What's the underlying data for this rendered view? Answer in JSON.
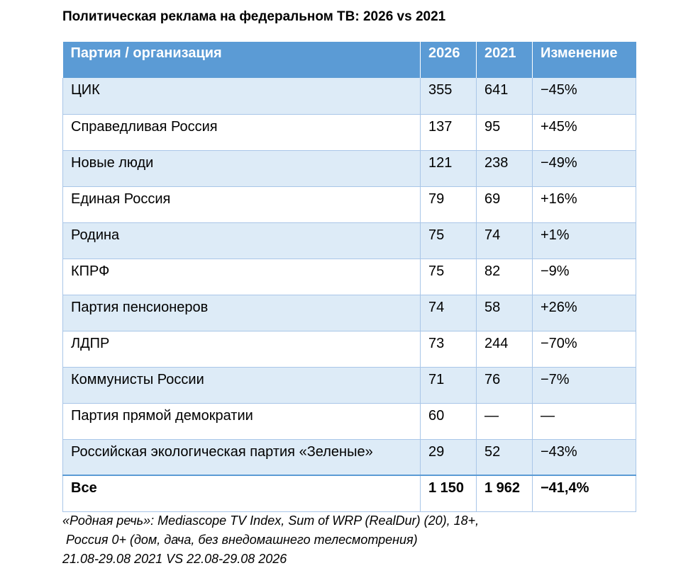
{
  "title": "Политическая реклама на федеральном ТВ: 2026 vs 2021",
  "table": {
    "headers": {
      "party": "Партия / организация",
      "y2026": "2026",
      "y2021": "2021",
      "change": "Изменение"
    },
    "rows": [
      {
        "party": "ЦИК",
        "y2026": "355",
        "y2021": "641",
        "change": "−45%"
      },
      {
        "party": "Справедливая Россия",
        "y2026": "137",
        "y2021": "95",
        "change": "+45%"
      },
      {
        "party": "Новые люди",
        "y2026": "121",
        "y2021": "238",
        "change": "−49%"
      },
      {
        "party": "Единая Россия",
        "y2026": "79",
        "y2021": "69",
        "change": "+16%"
      },
      {
        "party": "Родина",
        "y2026": "75",
        "y2021": "74",
        "change": "+1%"
      },
      {
        "party": "КПРФ",
        "y2026": "75",
        "y2021": "82",
        "change": "−9%"
      },
      {
        "party": "Партия пенсионеров",
        "y2026": "74",
        "y2021": "58",
        "change": "+26%"
      },
      {
        "party": "ЛДПР",
        "y2026": "73",
        "y2021": "244",
        "change": "−70%"
      },
      {
        "party": "Коммунисты России",
        "y2026": "71",
        "y2021": "76",
        "change": "−7%"
      },
      {
        "party": "Партия прямой демократии",
        "y2026": "60",
        "y2021": "—",
        "change": "—"
      },
      {
        "party": "Российская экологическая партия «Зеленые»",
        "y2026": "29",
        "y2021": "52",
        "change": "−43%"
      }
    ],
    "total": {
      "party": "Все",
      "y2026": "1 150",
      "y2021": "1 962",
      "change": "−41,4%"
    }
  },
  "source": {
    "line1": "«Родная речь»: Mediascope TV Index, Sum of WRP (RealDur) (20), 18+,",
    "line2": " Россия 0+ (дом, дача, без внедомашнего телесмотрения)",
    "line3": "21.08-29.08 2021 VS 22.08-29.08 2026"
  },
  "colors": {
    "header_bg": "#5b9bd5",
    "band_bg": "#ddebf7",
    "border": "#a9c6e8"
  }
}
